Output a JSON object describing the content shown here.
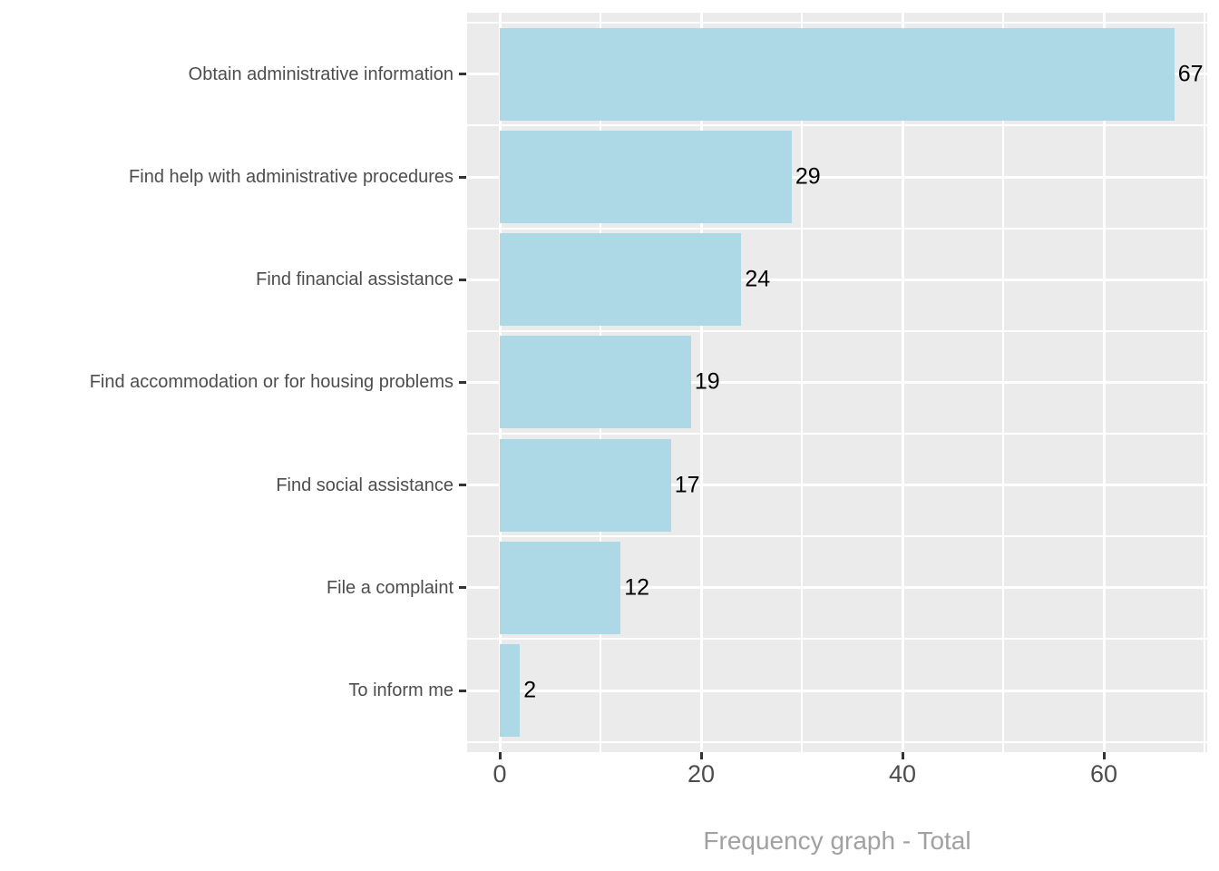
{
  "chart_data": {
    "type": "bar",
    "orientation": "horizontal",
    "categories": [
      "Obtain administrative information",
      "Find help with administrative procedures",
      "Find financial assistance",
      "Find accommodation or for housing problems",
      "Find social assistance",
      "File a complaint",
      "To inform me"
    ],
    "values": [
      67,
      29,
      24,
      19,
      17,
      12,
      2
    ],
    "bar_value_labels": [
      "67",
      "29",
      "24",
      "19",
      "17",
      "12",
      "2"
    ],
    "title": "",
    "xlabel": "Frequency graph - Total",
    "ylabel": "",
    "x_tick_labels": [
      "0",
      "20",
      "40",
      "60"
    ],
    "x_tick_values": [
      0,
      20,
      40,
      60
    ],
    "x_minor_tick_values": [
      10,
      30,
      50,
      70
    ],
    "xlim": [
      -3.2,
      70.3
    ],
    "grid": "on",
    "legend_position": "none",
    "colors": {
      "bar_fill": "#ADD8E6",
      "panel_background": "#EBEBEB",
      "gridline": "#FFFFFF",
      "axis_text": "#4D4D4D",
      "tick_mark": "#333333",
      "value_label": "#000000",
      "axis_title": "#A1A1A1",
      "figure_background": "#FFFFFF"
    }
  }
}
